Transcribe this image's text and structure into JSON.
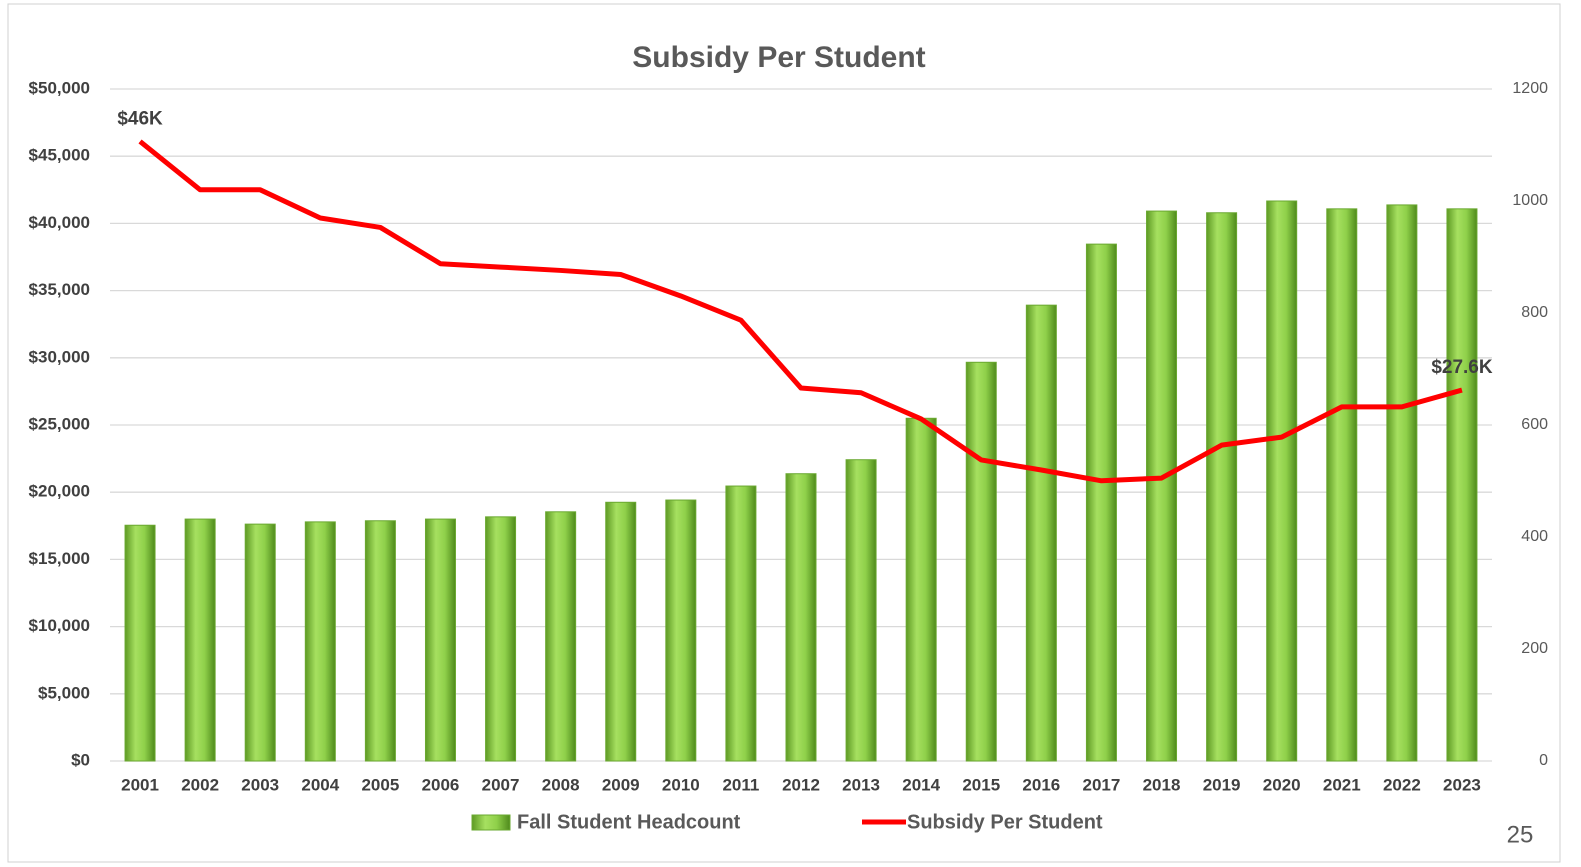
{
  "chart_data": {
    "type": "bar",
    "title": "Subsidy Per Student",
    "categories": [
      "2001",
      "2002",
      "2003",
      "2004",
      "2005",
      "2006",
      "2007",
      "2008",
      "2009",
      "2010",
      "2011",
      "2012",
      "2013",
      "2014",
      "2015",
      "2016",
      "2017",
      "2018",
      "2019",
      "2020",
      "2021",
      "2022",
      "2023"
    ],
    "series": [
      {
        "name": "Fall Student Headcount",
        "type": "bar",
        "axis": "y2",
        "color": "#7dc242",
        "values": [
          421,
          432,
          423,
          427,
          429,
          432,
          436,
          445,
          462,
          466,
          491,
          513,
          538,
          612,
          712,
          814,
          923,
          982,
          979,
          1000,
          986,
          993,
          986
        ]
      },
      {
        "name": "Subsidy Per Student",
        "type": "line",
        "color": "#ff0000",
        "values": [
          46100,
          42500,
          42500,
          40400,
          39700,
          37000,
          36750,
          36500,
          36200,
          34600,
          32800,
          27750,
          27400,
          25450,
          22400,
          21650,
          20850,
          21050,
          23500,
          24100,
          26350,
          26350,
          27600
        ],
        "value_labels": [
          "$46K",
          null,
          null,
          null,
          null,
          null,
          null,
          null,
          null,
          null,
          null,
          null,
          null,
          null,
          null,
          null,
          null,
          null,
          null,
          null,
          null,
          null,
          "$27.6K"
        ]
      }
    ],
    "ylim": [
      0,
      50000
    ],
    "yticks": [
      {
        "value": 0,
        "label": "$0"
      },
      {
        "value": 5000,
        "label": "$5,000"
      },
      {
        "value": 10000,
        "label": "$10,000"
      },
      {
        "value": 15000,
        "label": "$15,000"
      },
      {
        "value": 20000,
        "label": "$20,000"
      },
      {
        "value": 25000,
        "label": "$25,000"
      },
      {
        "value": 30000,
        "label": "$30,000"
      },
      {
        "value": 35000,
        "label": "$35,000"
      },
      {
        "value": 40000,
        "label": "$40,000"
      },
      {
        "value": 45000,
        "label": "$45,000"
      },
      {
        "value": 50000,
        "label": "$50,000"
      }
    ],
    "y2lim": [
      0,
      1200
    ],
    "y2ticks": [
      0,
      200,
      400,
      600,
      800,
      1000,
      1200
    ],
    "grid": true,
    "legend": "bottom"
  },
  "page_number": "25"
}
